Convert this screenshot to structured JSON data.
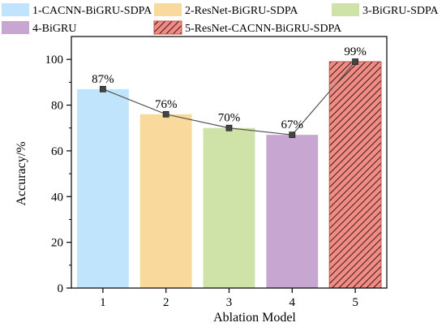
{
  "chart_data": {
    "type": "bar",
    "xlabel": "Ablation Model",
    "ylabel": "Accuracy/%",
    "ylim": [
      0,
      110
    ],
    "yticks": [
      0,
      20,
      40,
      60,
      80,
      100
    ],
    "categories": [
      "1",
      "2",
      "3",
      "4",
      "5"
    ],
    "values": [
      87,
      76,
      70,
      67,
      99
    ],
    "value_labels": [
      "87%",
      "76%",
      "70%",
      "67%",
      "99%"
    ],
    "bar_colors": [
      "#bfe4fb",
      "#f9d99c",
      "#cfe2a8",
      "#c7a6d1",
      "#f08c84"
    ],
    "hatched": [
      false,
      false,
      false,
      false,
      true
    ],
    "overlay_line": {
      "type": "line",
      "marker": "square",
      "color": "#555555",
      "values": [
        87,
        76,
        70,
        67,
        99
      ]
    },
    "legend": {
      "placement": "top",
      "entries": [
        {
          "label": "1-CACNN-BiGRU-SDPA",
          "color": "#bfe4fb",
          "hatched": false
        },
        {
          "label": "2-ResNet-BiGRU-SDPA",
          "color": "#f9d99c",
          "hatched": false
        },
        {
          "label": "3-BiGRU-SDPA",
          "color": "#cfe2a8",
          "hatched": false
        },
        {
          "label": "4-BiGRU",
          "color": "#c7a6d1",
          "hatched": false
        },
        {
          "label": "5-ResNet-CACNN-BiGRU-SDPA",
          "color": "#f08c84",
          "hatched": true
        }
      ]
    },
    "grid": false
  }
}
